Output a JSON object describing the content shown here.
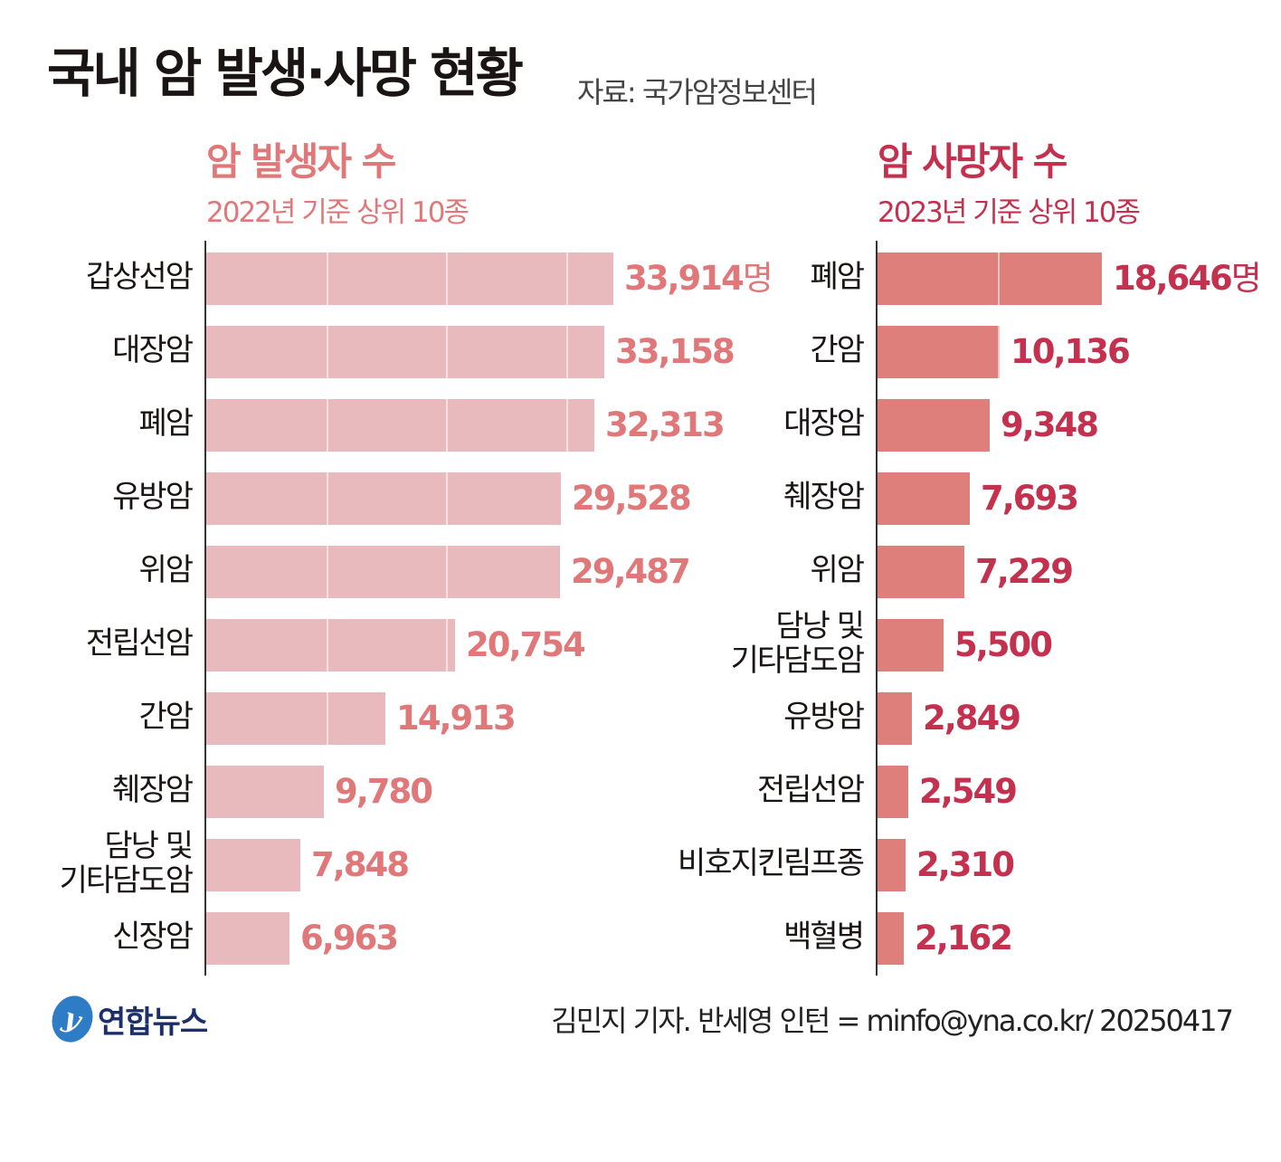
{
  "header": {
    "title": "국내 암 발생·사망 현황",
    "source": "자료: 국가암정보센터"
  },
  "chart_data": [
    {
      "type": "bar",
      "orientation": "horizontal",
      "title": "암 발생자 수",
      "subtitle": "2022년 기준 상위 10종",
      "unit": "명",
      "categories": [
        "갑상선암",
        "대장암",
        "폐암",
        "유방암",
        "위암",
        "전립선암",
        "간암",
        "췌장암",
        "담낭 및\n기타담도암",
        "신장암"
      ],
      "category_lines": [
        [
          "갑상선암"
        ],
        [
          "대장암"
        ],
        [
          "폐암"
        ],
        [
          "유방암"
        ],
        [
          "위암"
        ],
        [
          "전립선암"
        ],
        [
          "간암"
        ],
        [
          "췌장암"
        ],
        [
          "담낭 및",
          "기타담도암"
        ],
        [
          "신장암"
        ]
      ],
      "values": [
        33914,
        33158,
        32313,
        29528,
        29487,
        20754,
        14913,
        9780,
        7848,
        6963
      ],
      "value_labels": [
        "33,914",
        "33,158",
        "32,313",
        "29,528",
        "29,487",
        "20,754",
        "14,913",
        "9,780",
        "7,848",
        "6,963"
      ],
      "color": "#e8babd",
      "label_color": "#e0787a",
      "grid_step": 10000
    },
    {
      "type": "bar",
      "orientation": "horizontal",
      "title": "암 사망자 수",
      "subtitle": "2023년 기준 상위 10종",
      "unit": "명",
      "categories": [
        "폐암",
        "간암",
        "대장암",
        "췌장암",
        "위암",
        "담낭 및\n기타담도암",
        "유방암",
        "전립선암",
        "비호지킨림프종",
        "백혈병"
      ],
      "category_lines": [
        [
          "폐암"
        ],
        [
          "간암"
        ],
        [
          "대장암"
        ],
        [
          "췌장암"
        ],
        [
          "위암"
        ],
        [
          "담낭 및",
          "기타담도암"
        ],
        [
          "유방암"
        ],
        [
          "전립선암"
        ],
        [
          "비호지킨림프종"
        ],
        [
          "백혈병"
        ]
      ],
      "values": [
        18646,
        10136,
        9348,
        7693,
        7229,
        5500,
        2849,
        2549,
        2310,
        2162
      ],
      "value_labels": [
        "18,646",
        "10,136",
        "9,348",
        "7,693",
        "7,229",
        "5,500",
        "2,849",
        "2,549",
        "2,310",
        "2,162"
      ],
      "color": "#de7f7c",
      "label_color": "#c4314f",
      "grid_step": 10000
    }
  ],
  "footer": {
    "logo_text": "연합뉴스",
    "credit": "김민지 기자. 반세영 인턴 = minfo@yna.co.kr/ 20250417"
  }
}
